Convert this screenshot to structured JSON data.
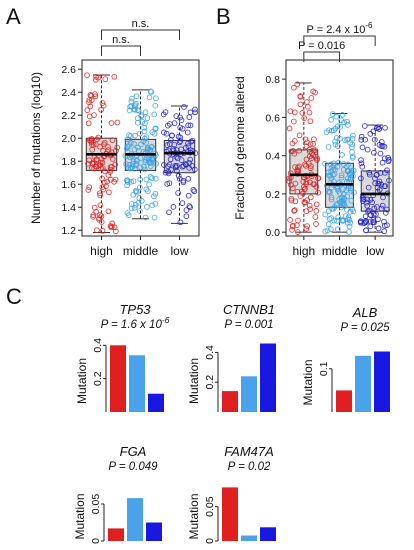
{
  "panel_letters": {
    "a": "A",
    "b": "B",
    "c": "C"
  },
  "chart_data": [
    {
      "type": "box",
      "panel": "A",
      "title": "",
      "ylabel": "Number of mutations (log10)",
      "categories": [
        "high",
        "middle",
        "low"
      ],
      "yticks": [
        "1.2",
        "1.4",
        "1.6",
        "1.8",
        "2.0",
        "2.2",
        "2.4",
        "2.6"
      ],
      "ylim": [
        1.15,
        2.68
      ],
      "colors": [
        "#e02020",
        "#3aa0e8",
        "#1f1fcf"
      ],
      "boxes": [
        {
          "name": "high",
          "min": 1.18,
          "q1": 1.72,
          "median": 1.86,
          "q3": 2.0,
          "max": 2.55,
          "n": 110
        },
        {
          "name": "middle",
          "min": 1.3,
          "q1": 1.72,
          "median": 1.86,
          "q3": 1.99,
          "max": 2.42,
          "n": 140
        },
        {
          "name": "low",
          "min": 1.26,
          "q1": 1.7,
          "median": 1.87,
          "q3": 1.98,
          "max": 2.28,
          "n": 95
        }
      ],
      "comparisons": [
        {
          "from": "high",
          "to": "middle",
          "label": "n.s."
        },
        {
          "from": "high",
          "to": "low",
          "label": "n.s."
        }
      ]
    },
    {
      "type": "box",
      "panel": "B",
      "title": "",
      "ylabel": "Fraction of genome altered",
      "categories": [
        "high",
        "middle",
        "low"
      ],
      "yticks": [
        "0.0",
        "0.2",
        "0.4",
        "0.6",
        "0.8"
      ],
      "ylim": [
        -0.02,
        0.9
      ],
      "colors": [
        "#e02020",
        "#3aa0e8",
        "#1f1fcf"
      ],
      "boxes": [
        {
          "name": "high",
          "min": 0.0,
          "q1": 0.2,
          "median": 0.3,
          "q3": 0.43,
          "max": 0.78,
          "n": 110
        },
        {
          "name": "middle",
          "min": 0.0,
          "q1": 0.13,
          "median": 0.25,
          "q3": 0.36,
          "max": 0.62,
          "n": 140
        },
        {
          "name": "low",
          "min": 0.0,
          "q1": 0.11,
          "median": 0.2,
          "q3": 0.32,
          "max": 0.56,
          "n": 95
        }
      ],
      "comparisons": [
        {
          "from": "high",
          "to": "middle",
          "label": "P = 0.016"
        },
        {
          "from": "high",
          "to": "low",
          "label_main": "P = 2.4 x 10",
          "label_sup": "-6"
        }
      ]
    },
    {
      "type": "bar",
      "panel": "C",
      "gene": "TP53",
      "pvalue_main": "P = 1.6 x 10",
      "pvalue_sup": "-6",
      "ylabel": "Mutation",
      "categories": [
        "high",
        "middle",
        "low"
      ],
      "values": [
        0.4,
        0.34,
        0.11
      ],
      "ylim": [
        0,
        0.42
      ],
      "yticks": [
        {
          "value": 0.2,
          "label": "0.2"
        },
        {
          "value": 0.4,
          "label": "0.4"
        }
      ],
      "colors": [
        "#e02020",
        "#4aa3ea",
        "#1818e0"
      ]
    },
    {
      "type": "bar",
      "panel": "C",
      "gene": "CTNNB1",
      "pvalue_main": "P = 0.001",
      "ylabel": "Mutation",
      "categories": [
        "high",
        "middle",
        "low"
      ],
      "values": [
        0.14,
        0.24,
        0.46
      ],
      "ylim": [
        0,
        0.47
      ],
      "yticks": [
        {
          "value": 0.2,
          "label": "0.2"
        },
        {
          "value": 0.4,
          "label": "0.4"
        }
      ],
      "colors": [
        "#e02020",
        "#4aa3ea",
        "#1818e0"
      ]
    },
    {
      "type": "bar",
      "panel": "C",
      "gene": "ALB",
      "pvalue_main": "P = 0.025",
      "ylabel": "Mutation",
      "categories": [
        "high",
        "middle",
        "low"
      ],
      "values": [
        0.05,
        0.13,
        0.14
      ],
      "ylim": [
        0,
        0.155
      ],
      "yticks": [
        {
          "value": 0.1,
          "label": "0.1"
        }
      ],
      "colors": [
        "#e02020",
        "#4aa3ea",
        "#1818e0"
      ]
    },
    {
      "type": "bar",
      "panel": "C",
      "gene": "FGA",
      "pvalue_main": "P = 0.049",
      "ylabel": "Mutation",
      "categories": [
        "high",
        "middle",
        "low"
      ],
      "values": [
        0.017,
        0.058,
        0.025
      ],
      "ylim": [
        0,
        0.077
      ],
      "yticks": [
        {
          "value": 0.0,
          "label": "0"
        },
        {
          "value": 0.05,
          "label": "0.05"
        }
      ],
      "colors": [
        "#e02020",
        "#4aa3ea",
        "#1818e0"
      ]
    },
    {
      "type": "bar",
      "panel": "C",
      "gene": "FAM47A",
      "pvalue_main": "P = 0.02",
      "ylabel": "Mutation",
      "categories": [
        "high",
        "middle",
        "low"
      ],
      "values": [
        0.078,
        0.008,
        0.02
      ],
      "ylim": [
        0,
        0.083
      ],
      "yticks": [
        {
          "value": 0.0,
          "label": "0"
        },
        {
          "value": 0.05,
          "label": "0.05"
        }
      ],
      "colors": [
        "#e02020",
        "#4aa3ea",
        "#1818e0"
      ]
    }
  ]
}
